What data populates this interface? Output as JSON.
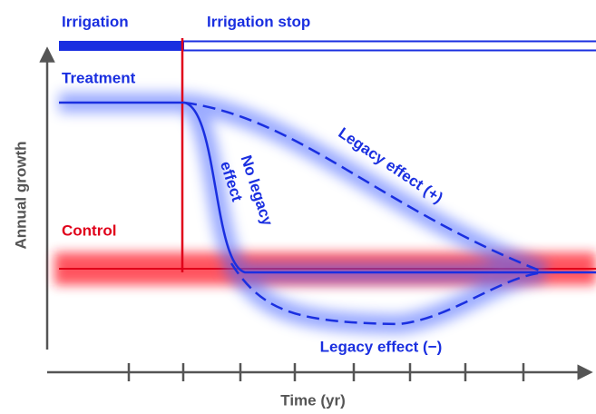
{
  "header": {
    "irrigation": "Irrigation",
    "irrigation_stop": "Irrigation stop"
  },
  "labels": {
    "treatment": "Treatment",
    "control": "Control",
    "no_legacy": [
      "No legacy",
      "effect"
    ],
    "legacy_plus": "Legacy effect (+)",
    "legacy_minus": "Legacy effect (−)"
  },
  "axes": {
    "y": "Annual growth",
    "x": "Time (yr)"
  }
}
